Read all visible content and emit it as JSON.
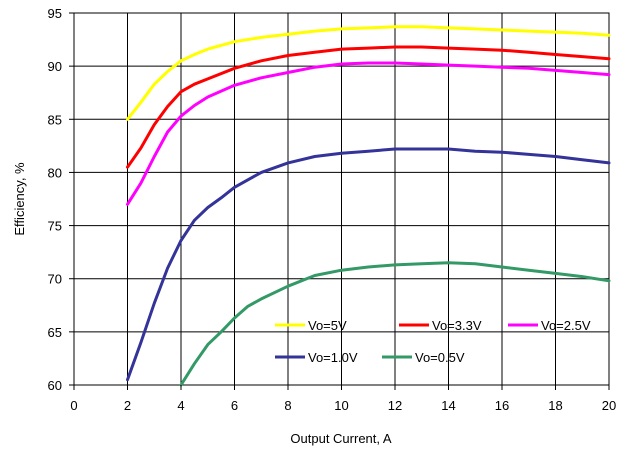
{
  "chart_data": {
    "type": "line",
    "xlabel": "Output Current, A",
    "ylabel": "Efficiency, %",
    "xlim": [
      0,
      20
    ],
    "ylim": [
      60,
      95
    ],
    "x_ticks": [
      0,
      2,
      4,
      6,
      8,
      10,
      12,
      14,
      16,
      18,
      20
    ],
    "y_ticks": [
      60,
      65,
      70,
      75,
      80,
      85,
      90,
      95
    ],
    "grid": true,
    "legend_position": "bottom-right",
    "series": [
      {
        "name": "Vo=5V",
        "color": "#ffff00",
        "x": [
          2,
          2.5,
          3,
          3.5,
          4,
          4.5,
          5,
          6,
          7,
          8,
          9,
          10,
          11,
          12,
          13,
          14,
          15,
          16,
          17,
          18,
          19,
          20
        ],
        "y": [
          85.0,
          86.6,
          88.3,
          89.5,
          90.5,
          91.1,
          91.6,
          92.3,
          92.7,
          93.0,
          93.3,
          93.5,
          93.6,
          93.7,
          93.7,
          93.6,
          93.5,
          93.4,
          93.3,
          93.2,
          93.1,
          92.9
        ]
      },
      {
        "name": "Vo=3.3V",
        "color": "#ff0000",
        "x": [
          2,
          2.5,
          3,
          3.5,
          4,
          4.5,
          5,
          6,
          7,
          8,
          9,
          10,
          11,
          12,
          13,
          14,
          15,
          16,
          17,
          18,
          19,
          20
        ],
        "y": [
          80.5,
          82.3,
          84.5,
          86.2,
          87.6,
          88.3,
          88.8,
          89.8,
          90.5,
          91.0,
          91.3,
          91.6,
          91.7,
          91.8,
          91.8,
          91.7,
          91.6,
          91.5,
          91.3,
          91.1,
          90.9,
          90.7
        ]
      },
      {
        "name": "Vo=2.5V",
        "color": "#ff00ff",
        "x": [
          2,
          2.5,
          3,
          3.5,
          4,
          4.5,
          5,
          6,
          7,
          8,
          9,
          10,
          11,
          12,
          13,
          14,
          15,
          16,
          17,
          18,
          19,
          20
        ],
        "y": [
          77.0,
          79.0,
          81.5,
          83.8,
          85.3,
          86.3,
          87.1,
          88.2,
          88.9,
          89.4,
          89.9,
          90.2,
          90.3,
          90.3,
          90.2,
          90.1,
          90.0,
          89.9,
          89.8,
          89.6,
          89.4,
          89.2
        ]
      },
      {
        "name": "Vo=1.0V",
        "color": "#333399",
        "x": [
          2,
          2.5,
          3,
          3.5,
          4,
          4.5,
          5,
          5.5,
          6,
          7,
          8,
          9,
          10,
          11,
          12,
          13,
          14,
          15,
          16,
          17,
          18,
          19,
          20
        ],
        "y": [
          60.5,
          64.0,
          67.7,
          71.0,
          73.6,
          75.5,
          76.7,
          77.6,
          78.6,
          80.0,
          80.9,
          81.5,
          81.8,
          82.0,
          82.2,
          82.2,
          82.2,
          82.0,
          81.9,
          81.7,
          81.5,
          81.2,
          80.9
        ]
      },
      {
        "name": "Vo=0.5V",
        "color": "#339966",
        "x": [
          4,
          4.5,
          5,
          5.5,
          6,
          6.5,
          7,
          8,
          9,
          10,
          11,
          12,
          13,
          14,
          15,
          16,
          17,
          18,
          19,
          20
        ],
        "y": [
          60.0,
          62.0,
          63.8,
          65.0,
          66.3,
          67.4,
          68.1,
          69.3,
          70.3,
          70.8,
          71.1,
          71.3,
          71.4,
          71.5,
          71.4,
          71.1,
          70.8,
          70.5,
          70.2,
          69.8
        ]
      }
    ]
  }
}
